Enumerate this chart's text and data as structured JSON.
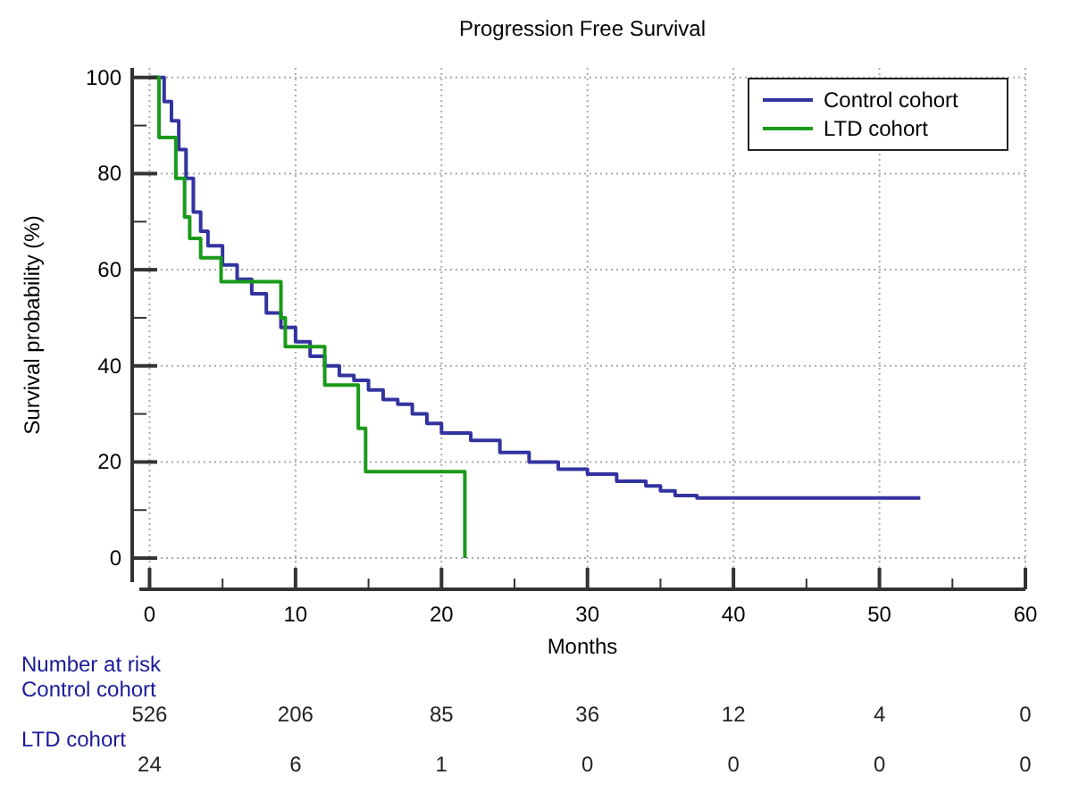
{
  "chart_data": {
    "type": "step",
    "title": "Progression Free Survival",
    "xlabel": "Months",
    "ylabel": "Survival probability (%)",
    "xlim": [
      -0.7,
      60
    ],
    "xticks": [
      0,
      {
        "value": 5,
        "label": null
      },
      10,
      {
        "value": 15,
        "label": null
      },
      20,
      {
        "value": 25,
        "label": null
      },
      30,
      {
        "value": 35,
        "label": null
      },
      40,
      {
        "value": 45,
        "label": null
      },
      50,
      {
        "value": 55,
        "label": null
      },
      60
    ],
    "ylim": [
      -5,
      102
    ],
    "yticks": [
      0,
      {
        "value": 10,
        "label": null
      },
      20,
      {
        "value": 30,
        "label": null
      },
      40,
      {
        "value": 50,
        "label": null
      },
      60,
      {
        "value": 70,
        "label": null
      },
      80,
      {
        "value": 90,
        "label": null
      },
      100
    ],
    "grid": true,
    "legend": "top right",
    "line_style": "solid",
    "marker": "none",
    "series": [
      {
        "name": "Control cohort",
        "color": "#3333a0",
        "x": [
          0,
          1,
          1.5,
          2,
          2.5,
          3,
          3.5,
          4,
          5,
          6,
          7,
          8,
          9,
          10,
          11,
          12,
          13,
          14,
          15,
          16,
          17,
          18,
          19,
          20,
          22,
          24,
          26,
          28,
          30,
          32,
          34,
          35,
          36,
          37.5,
          52.8
        ],
        "values": [
          100,
          95,
          91,
          85,
          79,
          72,
          68,
          65,
          61,
          58,
          55,
          51,
          48,
          45,
          42,
          40,
          38,
          37,
          35,
          33,
          32,
          30,
          28,
          26,
          24.5,
          22,
          20,
          18.5,
          17.5,
          16,
          15,
          14,
          13,
          12.5,
          12.5
        ]
      },
      {
        "name": "LTD cohort",
        "color": "#1a9a1a",
        "x": [
          0,
          0.65,
          1.8,
          2.4,
          2.75,
          3.5,
          4.9,
          9,
          9.3,
          12,
          14.3,
          14.8,
          21.6
        ],
        "values": [
          100,
          87.5,
          79,
          71,
          66.5,
          62.5,
          57.5,
          50,
          44,
          36,
          27,
          18,
          0
        ]
      }
    ],
    "annotations": [
      "Number at risk",
      "Control cohort",
      "526",
      "206",
      "85",
      "36",
      "12",
      "4",
      "0",
      "LTD cohort",
      "24",
      "6",
      "1",
      "0",
      "0",
      "0",
      "0"
    ]
  }
}
